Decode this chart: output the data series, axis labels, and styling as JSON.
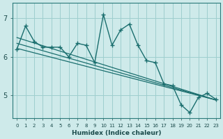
{
  "xlabel": "Humidex (Indice chaleur)",
  "background_color": "#ceeaea",
  "grid_color": "#9ecece",
  "line_color": "#1a6e6e",
  "x_data": [
    0,
    1,
    2,
    3,
    4,
    5,
    6,
    7,
    8,
    9,
    10,
    11,
    12,
    13,
    14,
    15,
    16,
    17,
    18,
    19,
    20,
    21,
    22,
    23
  ],
  "y_main": [
    6.2,
    6.8,
    6.4,
    6.25,
    6.25,
    6.25,
    6.0,
    6.35,
    6.3,
    5.85,
    7.1,
    6.3,
    6.7,
    6.85,
    6.3,
    5.9,
    5.85,
    5.3,
    5.25,
    4.75,
    4.55,
    4.95,
    5.05,
    4.9
  ],
  "trend_lines": [
    {
      "x0": 0,
      "y0": 6.22,
      "x1": 23,
      "y1": 4.88
    },
    {
      "x0": 0,
      "y0": 6.35,
      "x1": 23,
      "y1": 4.88
    },
    {
      "x0": 0,
      "y0": 6.5,
      "x1": 23,
      "y1": 4.88
    }
  ],
  "ylim": [
    4.4,
    7.4
  ],
  "xlim": [
    -0.5,
    23.5
  ],
  "yticks": [
    5,
    6,
    7
  ],
  "xticks": [
    0,
    1,
    2,
    3,
    4,
    5,
    6,
    7,
    8,
    9,
    10,
    11,
    12,
    13,
    14,
    15,
    16,
    17,
    18,
    19,
    20,
    21,
    22,
    23
  ]
}
